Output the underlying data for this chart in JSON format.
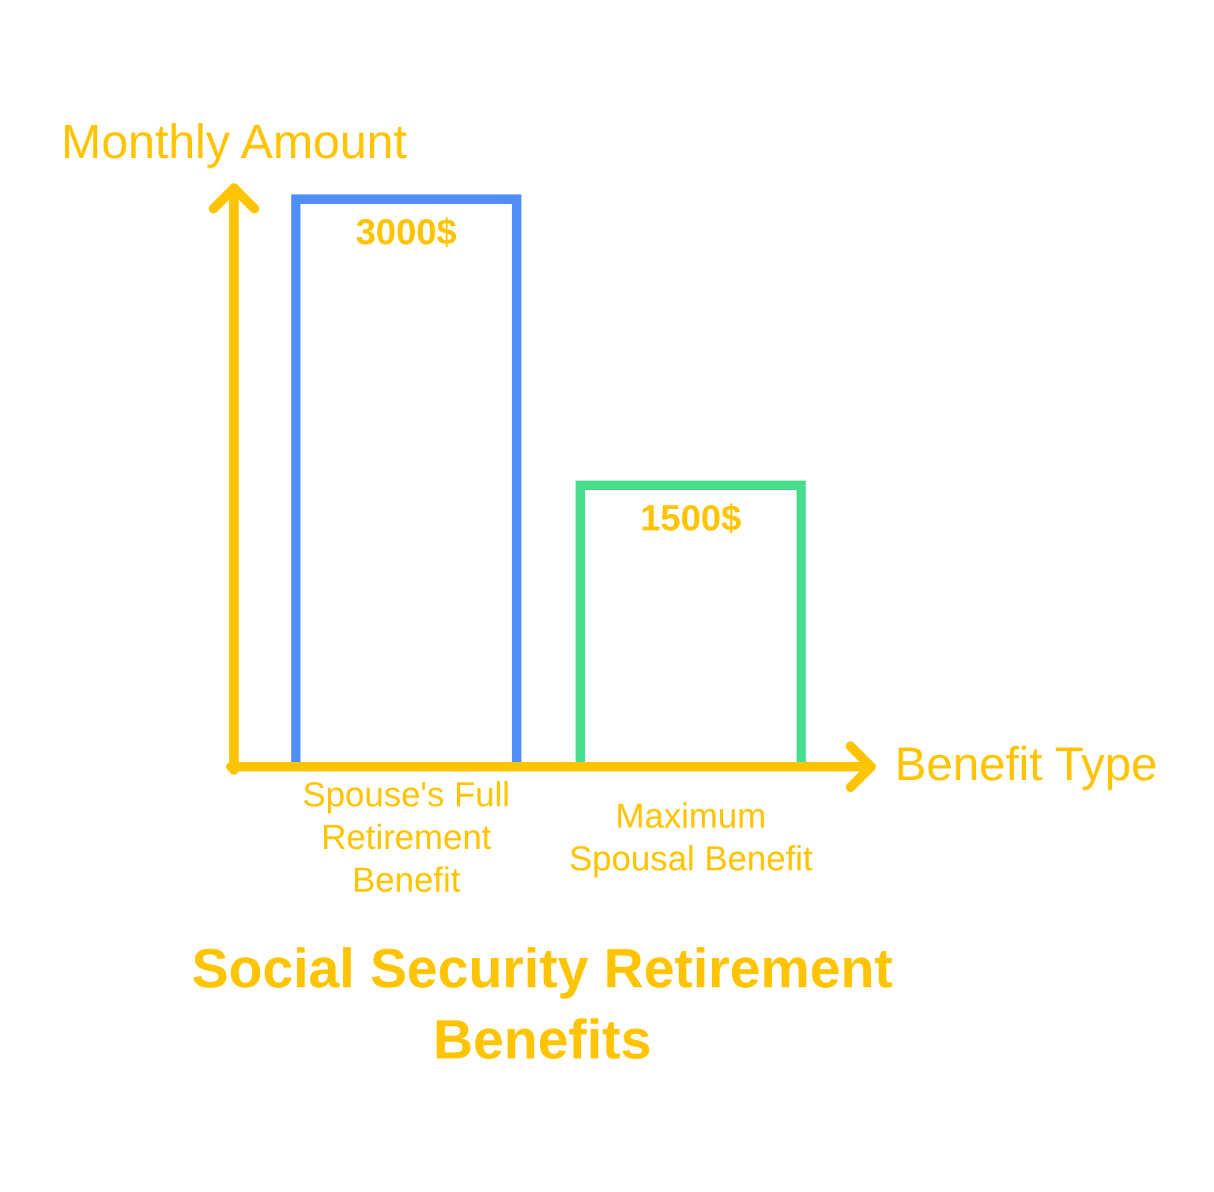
{
  "chart_data": {
    "type": "bar",
    "title": "Social Security Retirement Benefits",
    "xlabel": "Benefit Type",
    "ylabel": "Monthly Amount",
    "categories": [
      "Spouse's Full Retirement Benefit",
      "Maximum Spousal Benefit"
    ],
    "values": [
      3000,
      1500
    ],
    "colors": [
      "#4f8ff7",
      "#47de8e"
    ],
    "value_labels": [
      "3000$",
      "1500$"
    ],
    "tick_labels": "x"
  }
}
